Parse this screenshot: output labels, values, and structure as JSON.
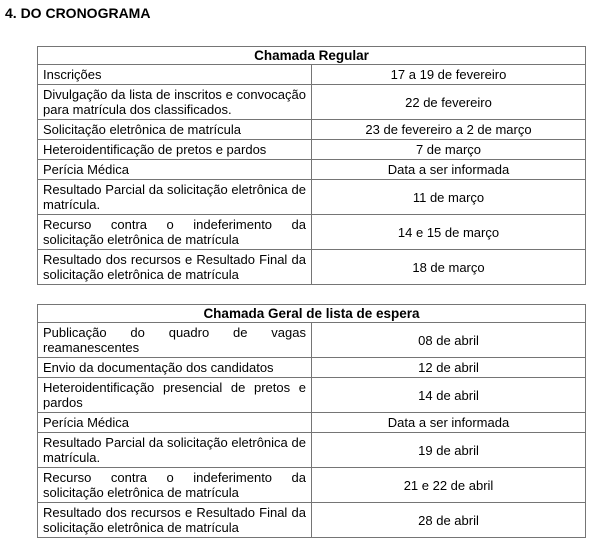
{
  "page": {
    "title": "4. DO CRONOGRAMA"
  },
  "colors": {
    "background": "#ffffff",
    "text": "#000000",
    "table_border": "#757575"
  },
  "tables": [
    {
      "header": "Chamada Regular",
      "rows": [
        {
          "activity": "Inscrições",
          "date": "17 a 19 de fevereiro"
        },
        {
          "activity": "Divulgação da lista de inscritos e convocação para matrícula dos classificados.",
          "date": "22 de fevereiro"
        },
        {
          "activity": "Solicitação eletrônica de matrícula",
          "date": "23 de fevereiro a 2 de março"
        },
        {
          "activity": "Heteroidentificação de pretos e pardos",
          "date": "7 de março"
        },
        {
          "activity": "Perícia Médica",
          "date": "Data a ser informada"
        },
        {
          "activity": "Resultado Parcial da solicitação eletrônica de matrícula.",
          "date": "11 de março"
        },
        {
          "activity": "Recurso contra o indeferimento da solicitação eletrônica de matrícula",
          "date": "14 e 15 de março"
        },
        {
          "activity": "Resultado dos recursos e Resultado Final da solicitação eletrônica de matrícula",
          "date": "18 de março"
        }
      ]
    },
    {
      "header": "Chamada Geral de lista de espera",
      "rows": [
        {
          "activity": "Publicação do quadro de vagas reamanescentes",
          "date": "08 de abril"
        },
        {
          "activity": "Envio da documentação dos candidatos",
          "date": "12 de abril"
        },
        {
          "activity": "Heteroidentificação presencial de pretos e pardos",
          "date": "14 de abril"
        },
        {
          "activity": "Perícia Médica",
          "date": "Data a ser informada"
        },
        {
          "activity": "Resultado Parcial da solicitação eletrônica de matrícula.",
          "date": "19 de abril"
        },
        {
          "activity": "Recurso contra o indeferimento da solicitação eletrônica de matrícula",
          "date": "21 e 22 de abril"
        },
        {
          "activity": "Resultado dos recursos e Resultado Final da solicitação eletrônica de matrícula",
          "date": "28 de abril"
        }
      ]
    }
  ]
}
